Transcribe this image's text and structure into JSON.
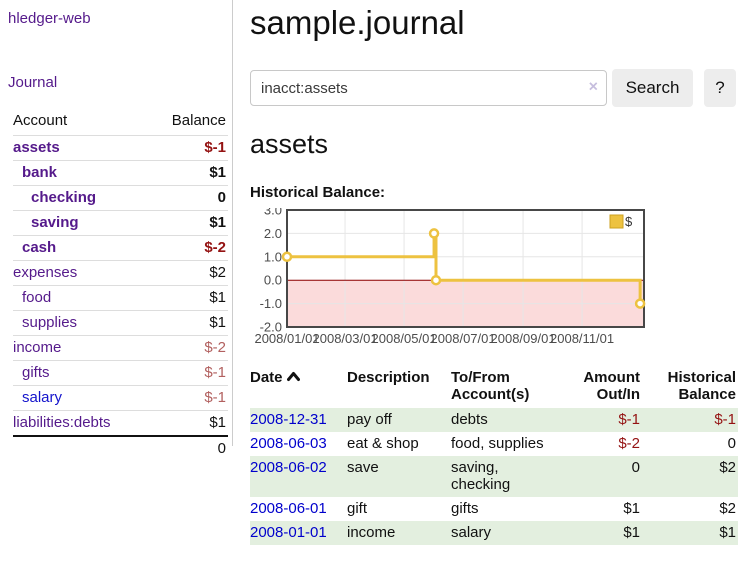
{
  "sidebar": {
    "brand": "hledger-web",
    "journal_label": "Journal",
    "table": {
      "account_header": "Account",
      "balance_header": "Balance"
    },
    "accounts": [
      {
        "name": "assets",
        "depth": 1,
        "balance": "$-1",
        "bold": true,
        "neg": "strong"
      },
      {
        "name": "bank",
        "depth": 2,
        "balance": "$1",
        "bold": true
      },
      {
        "name": "checking",
        "depth": 3,
        "balance": "0",
        "bold": true
      },
      {
        "name": "saving",
        "depth": 3,
        "balance": "$1",
        "bold": true
      },
      {
        "name": "cash",
        "depth": 2,
        "balance": "$-2",
        "bold": true,
        "neg": "strong"
      },
      {
        "name": "expenses",
        "depth": 1,
        "balance": "$2"
      },
      {
        "name": "food",
        "depth": 2,
        "balance": "$1"
      },
      {
        "name": "supplies",
        "depth": 2,
        "balance": "$1"
      },
      {
        "name": "income",
        "depth": 1,
        "balance": "$-2",
        "neg": "muted"
      },
      {
        "name": "gifts",
        "depth": 2,
        "balance": "$-1",
        "neg": "muted"
      },
      {
        "name": "salary",
        "depth": 2,
        "balance": "$-1",
        "neg": "muted",
        "unvisited": true
      },
      {
        "name": "liabilities:debts",
        "depth": 1,
        "balance": "$1"
      }
    ],
    "total": "0"
  },
  "main": {
    "title": "sample.journal",
    "search": {
      "value": "inacct:assets",
      "clear_icon": "×",
      "button_label": "Search",
      "help_label": "?"
    },
    "account_heading": "assets",
    "register": {
      "headers": {
        "date": "Date",
        "description": "Description",
        "accounts": "To/From\nAccount(s)",
        "amount": "Amount\nOut/In",
        "balance": "Historical\nBalance"
      },
      "rows": [
        {
          "date": "2008-12-31",
          "description": "pay off",
          "accounts": "debts",
          "amount": "$-1",
          "amount_neg": true,
          "balance": "$-1",
          "balance_neg": true
        },
        {
          "date": "2008-06-03",
          "description": "eat & shop",
          "accounts": "food, supplies",
          "amount": "$-2",
          "amount_neg": true,
          "balance": "0",
          "balance_neg": false
        },
        {
          "date": "2008-06-02",
          "description": "save",
          "accounts": "saving,\nchecking",
          "amount": "0",
          "amount_neg": false,
          "balance": "$2",
          "balance_neg": false
        },
        {
          "date": "2008-06-01",
          "description": "gift",
          "accounts": "gifts",
          "amount": "$1",
          "amount_neg": false,
          "balance": "$2",
          "balance_neg": false
        },
        {
          "date": "2008-01-01",
          "description": "income",
          "accounts": "salary",
          "amount": "$1",
          "amount_neg": false,
          "balance": "$1",
          "balance_neg": false
        }
      ]
    }
  },
  "chart_data": {
    "type": "line",
    "step": true,
    "title": "Historical Balance:",
    "series": [
      {
        "name": "$",
        "color": "#edc240",
        "points": [
          [
            "2008-01-01",
            1
          ],
          [
            "2008-06-01",
            2
          ],
          [
            "2008-06-03",
            0
          ],
          [
            "2008-12-31",
            -1
          ]
        ]
      }
    ],
    "xlim": [
      "2008-01-01",
      "2009-01-04"
    ],
    "ylim": [
      -2,
      3
    ],
    "x_ticks": [
      {
        "label": "2008/01/01",
        "date": "2008-01-01"
      },
      {
        "label": "2008/03/01",
        "date": "2008-03-01"
      },
      {
        "label": "2008/05/01",
        "date": "2008-05-01"
      },
      {
        "label": "2008/07/01",
        "date": "2008-07-01"
      },
      {
        "label": "2008/09/01",
        "date": "2008-09-01"
      },
      {
        "label": "2008/11/01",
        "date": "2008-11-01"
      }
    ],
    "y_ticks": [
      {
        "label": "3.0",
        "value": 3
      },
      {
        "label": "2.0",
        "value": 2
      },
      {
        "label": "1.0",
        "value": 1
      },
      {
        "label": "0.0",
        "value": 0
      },
      {
        "label": "-1.0",
        "value": -1
      },
      {
        "label": "-2.0",
        "value": -2
      }
    ],
    "colors": {
      "grid": "#e6e6e6",
      "border": "#474747",
      "negative_fill": "#fbdbdb",
      "zero_line": "#8b0000",
      "tick_text": "#4c4c4c",
      "legend_border": "#cda220"
    },
    "legend": {
      "label": "$",
      "position": "top-right"
    },
    "grid": true
  }
}
